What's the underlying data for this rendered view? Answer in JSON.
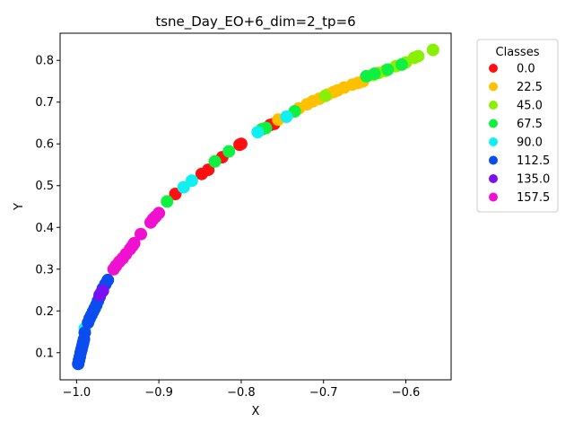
{
  "chart_data": {
    "type": "scatter",
    "title": "tsne_Day_EO+6_dim=2_tp=6",
    "xlabel": "X",
    "ylabel": "Y",
    "xlim": [
      -1.02,
      -0.545
    ],
    "ylim": [
      0.035,
      0.865
    ],
    "xticks": [
      {
        "value": -1.0,
        "label": "−1.0"
      },
      {
        "value": -0.9,
        "label": "−0.9"
      },
      {
        "value": -0.8,
        "label": "−0.8"
      },
      {
        "value": -0.7,
        "label": "−0.7"
      },
      {
        "value": -0.6,
        "label": "−0.6"
      }
    ],
    "yticks": [
      {
        "value": 0.1,
        "label": "0.1"
      },
      {
        "value": 0.2,
        "label": "0.2"
      },
      {
        "value": 0.3,
        "label": "0.3"
      },
      {
        "value": 0.4,
        "label": "0.4"
      },
      {
        "value": 0.5,
        "label": "0.5"
      },
      {
        "value": 0.6,
        "label": "0.6"
      },
      {
        "value": 0.7,
        "label": "0.7"
      },
      {
        "value": 0.8,
        "label": "0.8"
      }
    ],
    "grid": false,
    "legend": {
      "title": "Classes",
      "placement": "outside-right-top"
    },
    "series": [
      {
        "name": "0.0",
        "color": "#ff1010",
        "points": [
          [
            -0.88,
            0.48
          ],
          [
            -0.848,
            0.528
          ],
          [
            -0.84,
            0.538
          ],
          [
            -0.823,
            0.568
          ],
          [
            -0.802,
            0.598
          ],
          [
            -0.8,
            0.6
          ],
          [
            -0.765,
            0.645
          ],
          [
            -0.76,
            0.648
          ]
        ]
      },
      {
        "name": "22.5",
        "color": "#ffc000",
        "points": [
          [
            -0.755,
            0.658
          ],
          [
            -0.73,
            0.685
          ],
          [
            -0.72,
            0.695
          ],
          [
            -0.713,
            0.702
          ],
          [
            -0.705,
            0.708
          ],
          [
            -0.695,
            0.718
          ],
          [
            -0.688,
            0.724
          ],
          [
            -0.683,
            0.728
          ],
          [
            -0.675,
            0.735
          ],
          [
            -0.665,
            0.742
          ],
          [
            -0.658,
            0.746
          ],
          [
            -0.652,
            0.75
          ]
        ]
      },
      {
        "name": "45.0",
        "color": "#88f000",
        "points": [
          [
            -0.64,
            0.765
          ],
          [
            -0.633,
            0.77
          ],
          [
            -0.625,
            0.775
          ],
          [
            -0.612,
            0.786
          ],
          [
            -0.6,
            0.795
          ],
          [
            -0.59,
            0.806
          ],
          [
            -0.585,
            0.81
          ],
          [
            -0.567,
            0.825
          ],
          [
            -0.698,
            0.715
          ]
        ]
      },
      {
        "name": "67.5",
        "color": "#10f040",
        "points": [
          [
            -0.89,
            0.462
          ],
          [
            -0.832,
            0.558
          ],
          [
            -0.815,
            0.582
          ],
          [
            -0.775,
            0.635
          ],
          [
            -0.77,
            0.638
          ],
          [
            -0.735,
            0.678
          ],
          [
            -0.648,
            0.762
          ],
          [
            -0.638,
            0.768
          ],
          [
            -0.622,
            0.778
          ],
          [
            -0.605,
            0.79
          ]
        ]
      },
      {
        "name": "90.0",
        "color": "#10f0f0",
        "points": [
          [
            -0.87,
            0.496
          ],
          [
            -0.86,
            0.512
          ],
          [
            -0.745,
            0.665
          ],
          [
            -0.99,
            0.158
          ],
          [
            -0.78,
            0.628
          ]
        ]
      },
      {
        "name": "112.5",
        "color": "#0a4cf0",
        "points": [
          [
            -0.998,
            0.073
          ],
          [
            -0.997,
            0.082
          ],
          [
            -0.996,
            0.09
          ],
          [
            -0.995,
            0.1
          ],
          [
            -0.994,
            0.108
          ],
          [
            -0.993,
            0.116
          ],
          [
            -0.992,
            0.124
          ],
          [
            -0.991,
            0.132
          ],
          [
            -0.99,
            0.148
          ],
          [
            -0.986,
            0.172
          ],
          [
            -0.984,
            0.182
          ],
          [
            -0.982,
            0.19
          ],
          [
            -0.98,
            0.198
          ],
          [
            -0.978,
            0.206
          ],
          [
            -0.976,
            0.214
          ],
          [
            -0.974,
            0.224
          ],
          [
            -0.972,
            0.234
          ],
          [
            -0.97,
            0.244
          ],
          [
            -0.968,
            0.254
          ],
          [
            -0.965,
            0.264
          ],
          [
            -0.962,
            0.274
          ]
        ]
      },
      {
        "name": "135.0",
        "color": "#7a10f0",
        "points": [
          [
            -0.968,
            0.248
          ],
          [
            -0.972,
            0.238
          ]
        ]
      },
      {
        "name": "157.5",
        "color": "#f010d0",
        "points": [
          [
            -0.955,
            0.3
          ],
          [
            -0.952,
            0.308
          ],
          [
            -0.948,
            0.318
          ],
          [
            -0.944,
            0.326
          ],
          [
            -0.94,
            0.336
          ],
          [
            -0.935,
            0.348
          ],
          [
            -0.932,
            0.356
          ],
          [
            -0.93,
            0.362
          ],
          [
            -0.922,
            0.384
          ],
          [
            -0.91,
            0.412
          ],
          [
            -0.907,
            0.42
          ],
          [
            -0.904,
            0.426
          ],
          [
            -0.9,
            0.434
          ]
        ]
      }
    ]
  }
}
